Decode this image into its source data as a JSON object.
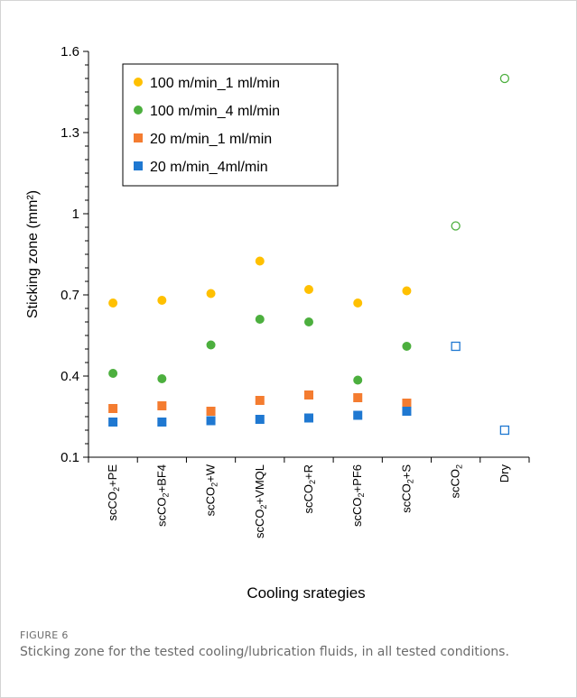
{
  "figure": {
    "label": "FIGURE 6",
    "caption": "Sticking zone for the tested cooling/lubrication fluids, in all tested conditions."
  },
  "chart_data": {
    "type": "scatter",
    "ylabel": "Sticking zone (mm²)",
    "xlabel": "Cooling srategies",
    "ylim": [
      0.1,
      1.6
    ],
    "yticks": [
      0.1,
      0.4,
      0.7,
      1,
      1.3,
      1.6
    ],
    "ytick_labels": [
      "0.1",
      "0.4",
      "0.7",
      "1",
      "1.3",
      "1.6"
    ],
    "legend_position": "top-left",
    "grid": false,
    "categories": [
      {
        "label": "scCO₂+PE",
        "pre": "scCO",
        "sub": "2",
        "post": "+PE"
      },
      {
        "label": "scCO₂+BF4",
        "pre": "scCO",
        "sub": "2",
        "post": "+BF4"
      },
      {
        "label": "scCO₂+W",
        "pre": "scCO",
        "sub": "2",
        "post": "+W"
      },
      {
        "label": "scCO₂+VMQL",
        "pre": "scCO",
        "sub": "2",
        "post": "+VMQL"
      },
      {
        "label": "scCO₂+R",
        "pre": "scCO",
        "sub": "2",
        "post": "+R"
      },
      {
        "label": "scCO₂+PF6",
        "pre": "scCO",
        "sub": "2",
        "post": "+PF6"
      },
      {
        "label": "scCO₂+S",
        "pre": "scCO",
        "sub": "2",
        "post": "+S"
      },
      {
        "label": "scCO₂",
        "pre": "scCO",
        "sub": "2",
        "post": ""
      },
      {
        "label": "Dry",
        "pre": "Dry",
        "sub": "",
        "post": ""
      }
    ],
    "series": [
      {
        "name": "100 m/min_1 ml/min",
        "marker": "circle",
        "color": "#FFC000",
        "values": [
          0.67,
          0.68,
          0.705,
          0.825,
          0.72,
          0.67,
          0.715,
          null,
          null
        ]
      },
      {
        "name": "100 m/min_4 ml/min",
        "marker": "circle",
        "color": "#4CAF3E",
        "values": [
          0.41,
          0.39,
          0.515,
          0.61,
          0.6,
          0.385,
          0.51,
          null,
          null
        ]
      },
      {
        "name": "20 m/min_1 ml/min",
        "marker": "square",
        "color": "#F47C30",
        "values": [
          0.28,
          0.29,
          0.27,
          0.31,
          0.33,
          0.32,
          0.3,
          null,
          null
        ]
      },
      {
        "name": "20 m/min_4ml/min",
        "marker": "square",
        "color": "#1F78D1",
        "values": [
          0.23,
          0.23,
          0.235,
          0.24,
          0.245,
          0.255,
          0.27,
          null,
          null
        ]
      }
    ],
    "reference_points": [
      {
        "category": "scCO₂",
        "series": "100 m/min_4 ml/min",
        "value": 0.955,
        "marker": "circle-open",
        "color": "#4CAF3E"
      },
      {
        "category": "scCO₂",
        "series": "20 m/min_4ml/min",
        "value": 0.51,
        "marker": "square-open",
        "color": "#1F78D1"
      },
      {
        "category": "Dry",
        "series": "100 m/min_4 ml/min",
        "value": 1.5,
        "marker": "circle-open",
        "color": "#4CAF3E"
      },
      {
        "category": "Dry",
        "series": "20 m/min_4ml/min",
        "value": 0.2,
        "marker": "square-open",
        "color": "#1F78D1"
      }
    ]
  }
}
